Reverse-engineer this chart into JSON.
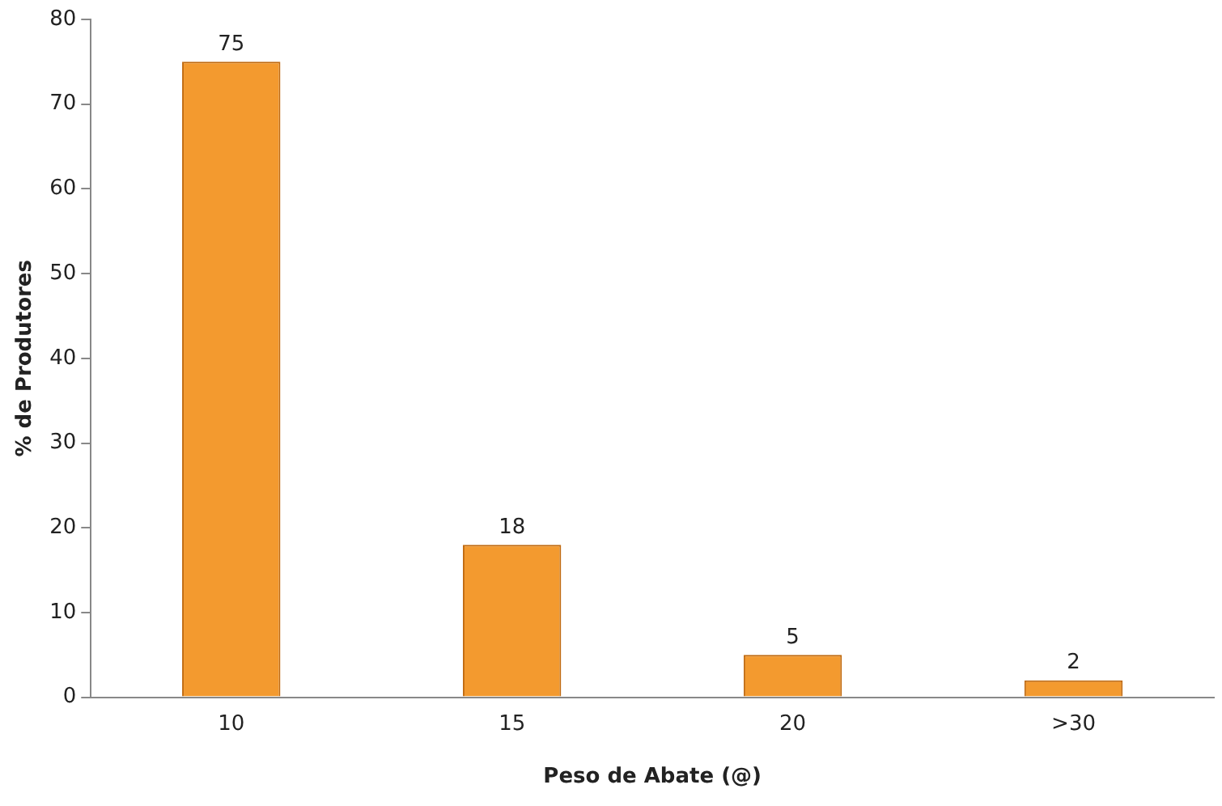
{
  "chart_data": {
    "type": "bar",
    "xlabel": "Peso de Abate (@)",
    "ylabel": "% de Produtores",
    "categories": [
      "10",
      "15",
      "20",
      ">30"
    ],
    "values": [
      75,
      18,
      5,
      2
    ],
    "color": "#f39a2f",
    "ylim": [
      0,
      80
    ],
    "yticks": [
      0,
      10,
      20,
      30,
      40,
      50,
      60,
      70,
      80
    ],
    "grid": false,
    "legend": false,
    "data_labels": true
  }
}
